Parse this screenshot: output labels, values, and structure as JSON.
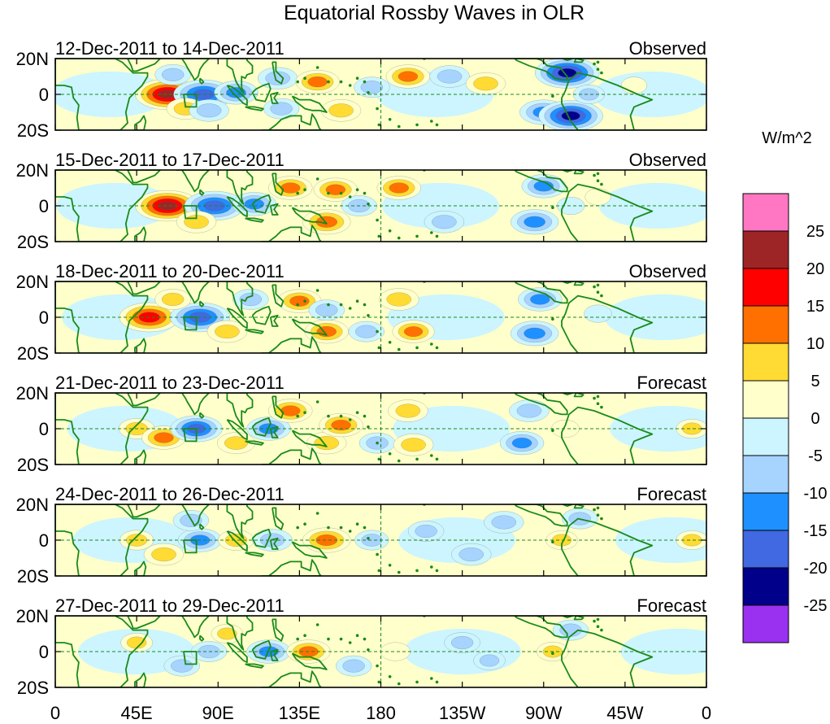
{
  "chart_data": {
    "type": "heatmap",
    "title": "Equatorial Rossby Waves in OLR",
    "units": "W/m^2",
    "x_ticks": [
      "0",
      "45E",
      "90E",
      "135E",
      "180",
      "135W",
      "90W",
      "45W",
      "0"
    ],
    "y_ticks": [
      "20N",
      "0",
      "20S"
    ],
    "xlim_deg_east": [
      0,
      360
    ],
    "ylim_deg": [
      -20,
      20
    ],
    "colorbar": {
      "levels": [
        "25",
        "20",
        "15",
        "10",
        "5",
        "0",
        "-5",
        "-10",
        "-15",
        "-20",
        "-25"
      ],
      "colors": [
        "#ff77c2",
        "#9e2525",
        "#ff0000",
        "#ff7000",
        "#ffdb33",
        "#ffffcc",
        "#ccf5ff",
        "#a7d3ff",
        "#1e90ff",
        "#4169e1",
        "#00008b",
        "#9a30f0"
      ]
    },
    "panels": [
      {
        "date_range": "12-Dec-2011 to 14-Dec-2011",
        "status": "Observed",
        "anomalies": [
          {
            "lon": 62,
            "lat": 0,
            "value": 22
          },
          {
            "lon": 82,
            "lat": 0,
            "value": -20
          },
          {
            "lon": 100,
            "lat": 1,
            "value": -12
          },
          {
            "lon": 72,
            "lat": -8,
            "value": 9
          },
          {
            "lon": 65,
            "lat": 11,
            "value": -8
          },
          {
            "lon": 85,
            "lat": -9,
            "value": -10
          },
          {
            "lon": 123,
            "lat": 9,
            "value": -10
          },
          {
            "lon": 125,
            "lat": -8,
            "value": -8
          },
          {
            "lon": 145,
            "lat": 7,
            "value": 12
          },
          {
            "lon": 158,
            "lat": -9,
            "value": 10
          },
          {
            "lon": 175,
            "lat": 4,
            "value": -8
          },
          {
            "lon": 195,
            "lat": 10,
            "value": 12
          },
          {
            "lon": 218,
            "lat": 10,
            "value": -10
          },
          {
            "lon": 238,
            "lat": 6,
            "value": 10
          },
          {
            "lon": 270,
            "lat": -10,
            "value": -14
          },
          {
            "lon": 283,
            "lat": 12,
            "value": -22
          },
          {
            "lon": 285,
            "lat": -12,
            "value": -22
          },
          {
            "lon": 295,
            "lat": 0,
            "value": -6
          },
          {
            "lon": 320,
            "lat": 5,
            "value": 3
          }
        ]
      },
      {
        "date_range": "15-Dec-2011 to 17-Dec-2011",
        "status": "Observed",
        "anomalies": [
          {
            "lon": 62,
            "lat": 0,
            "value": 22
          },
          {
            "lon": 88,
            "lat": 0,
            "value": -20
          },
          {
            "lon": 78,
            "lat": -9,
            "value": 10
          },
          {
            "lon": 110,
            "lat": 1,
            "value": -12
          },
          {
            "lon": 130,
            "lat": 10,
            "value": 12
          },
          {
            "lon": 150,
            "lat": -9,
            "value": 14
          },
          {
            "lon": 155,
            "lat": 9,
            "value": 12
          },
          {
            "lon": 168,
            "lat": 0,
            "value": -8
          },
          {
            "lon": 190,
            "lat": 10,
            "value": 12
          },
          {
            "lon": 215,
            "lat": -9,
            "value": -10
          },
          {
            "lon": 265,
            "lat": -9,
            "value": -14
          },
          {
            "lon": 270,
            "lat": 11,
            "value": -12
          },
          {
            "lon": 285,
            "lat": 0,
            "value": -4
          },
          {
            "lon": 300,
            "lat": 5,
            "value": 3
          }
        ]
      },
      {
        "date_range": "18-Dec-2011 to 20-Dec-2011",
        "status": "Observed",
        "anomalies": [
          {
            "lon": 52,
            "lat": 0,
            "value": 20
          },
          {
            "lon": 80,
            "lat": 0,
            "value": -20
          },
          {
            "lon": 65,
            "lat": 10,
            "value": 8
          },
          {
            "lon": 95,
            "lat": -8,
            "value": 10
          },
          {
            "lon": 108,
            "lat": 10,
            "value": -8
          },
          {
            "lon": 135,
            "lat": 9,
            "value": 12
          },
          {
            "lon": 150,
            "lat": -8,
            "value": 12
          },
          {
            "lon": 150,
            "lat": 4,
            "value": -8
          },
          {
            "lon": 172,
            "lat": -8,
            "value": -8
          },
          {
            "lon": 190,
            "lat": 10,
            "value": 10
          },
          {
            "lon": 198,
            "lat": -8,
            "value": 11
          },
          {
            "lon": 265,
            "lat": -9,
            "value": -14
          },
          {
            "lon": 268,
            "lat": 10,
            "value": -12
          },
          {
            "lon": 300,
            "lat": 2,
            "value": -4
          }
        ]
      },
      {
        "date_range": "21-Dec-2011 to 23-Dec-2011",
        "status": "Forecast",
        "anomalies": [
          {
            "lon": 45,
            "lat": 0,
            "value": 8
          },
          {
            "lon": 60,
            "lat": -5,
            "value": 12
          },
          {
            "lon": 78,
            "lat": 0,
            "value": -16
          },
          {
            "lon": 100,
            "lat": -8,
            "value": 9
          },
          {
            "lon": 118,
            "lat": 0,
            "value": -12
          },
          {
            "lon": 130,
            "lat": 10,
            "value": 12
          },
          {
            "lon": 150,
            "lat": -8,
            "value": 10
          },
          {
            "lon": 158,
            "lat": 2,
            "value": 12
          },
          {
            "lon": 178,
            "lat": -8,
            "value": -8
          },
          {
            "lon": 195,
            "lat": 10,
            "value": 10
          },
          {
            "lon": 198,
            "lat": -9,
            "value": 10
          },
          {
            "lon": 258,
            "lat": -8,
            "value": -12
          },
          {
            "lon": 262,
            "lat": 10,
            "value": -10
          },
          {
            "lon": 282,
            "lat": 0,
            "value": 4
          },
          {
            "lon": 352,
            "lat": 0,
            "value": 6
          }
        ]
      },
      {
        "date_range": "24-Dec-2011 to 26-Dec-2011",
        "status": "Forecast",
        "anomalies": [
          {
            "lon": 45,
            "lat": 0,
            "value": 7
          },
          {
            "lon": 60,
            "lat": -8,
            "value": 10
          },
          {
            "lon": 80,
            "lat": 0,
            "value": -12
          },
          {
            "lon": 75,
            "lat": 11,
            "value": -8
          },
          {
            "lon": 100,
            "lat": 0,
            "value": 8
          },
          {
            "lon": 120,
            "lat": 0,
            "value": -10
          },
          {
            "lon": 150,
            "lat": 0,
            "value": 14
          },
          {
            "lon": 175,
            "lat": 0,
            "value": -7
          },
          {
            "lon": 205,
            "lat": 5,
            "value": -8
          },
          {
            "lon": 230,
            "lat": -8,
            "value": -10
          },
          {
            "lon": 248,
            "lat": 10,
            "value": -10
          },
          {
            "lon": 280,
            "lat": 0,
            "value": 6
          },
          {
            "lon": 290,
            "lat": 12,
            "value": -8
          },
          {
            "lon": 352,
            "lat": 0,
            "value": 6
          }
        ]
      },
      {
        "date_range": "27-Dec-2011 to 29-Dec-2011",
        "status": "Forecast",
        "anomalies": [
          {
            "lon": 45,
            "lat": 5,
            "value": 6
          },
          {
            "lon": 70,
            "lat": -8,
            "value": -8
          },
          {
            "lon": 85,
            "lat": 0,
            "value": -8
          },
          {
            "lon": 95,
            "lat": 10,
            "value": 6
          },
          {
            "lon": 118,
            "lat": 0,
            "value": -12
          },
          {
            "lon": 140,
            "lat": 0,
            "value": 12
          },
          {
            "lon": 165,
            "lat": -8,
            "value": -8
          },
          {
            "lon": 188,
            "lat": 0,
            "value": 5
          },
          {
            "lon": 225,
            "lat": 5,
            "value": -8
          },
          {
            "lon": 240,
            "lat": -5,
            "value": -6
          },
          {
            "lon": 275,
            "lat": 0,
            "value": 6
          },
          {
            "lon": 285,
            "lat": 12,
            "value": -8
          }
        ]
      }
    ]
  }
}
